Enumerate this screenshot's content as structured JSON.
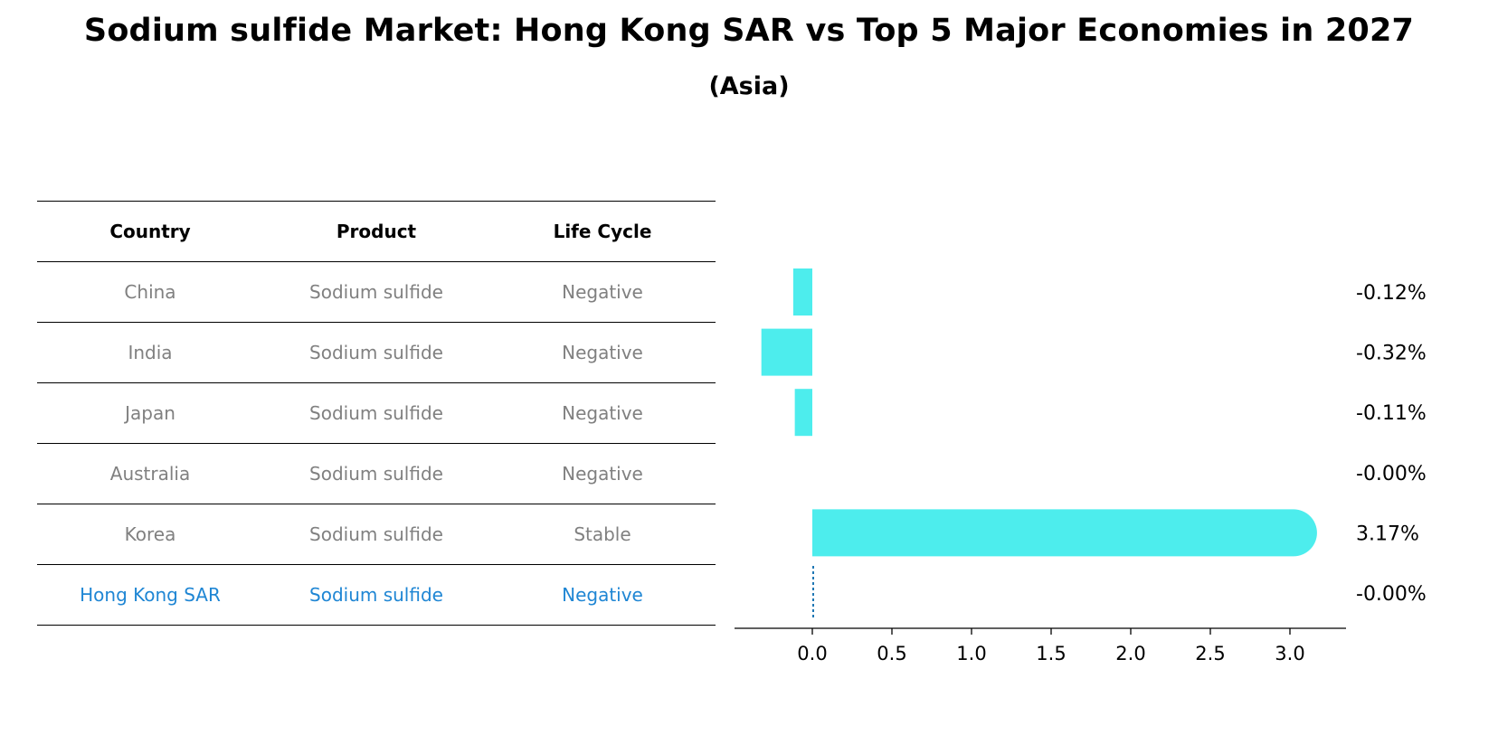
{
  "title": "Sodium sulfide Market: Hong Kong SAR vs Top 5 Major Economies in 2027",
  "subtitle": "(Asia)",
  "table": {
    "headers": [
      "Country",
      "Product",
      "Life Cycle"
    ],
    "rows": [
      {
        "country": "China",
        "product": "Sodium sulfide",
        "life_cycle": "Negative"
      },
      {
        "country": "India",
        "product": "Sodium sulfide",
        "life_cycle": "Negative"
      },
      {
        "country": "Japan",
        "product": "Sodium sulfide",
        "life_cycle": "Negative"
      },
      {
        "country": "Australia",
        "product": "Sodium sulfide",
        "life_cycle": "Negative"
      },
      {
        "country": "Korea",
        "product": "Sodium sulfide",
        "life_cycle": "Stable"
      },
      {
        "country": "Hong Kong SAR",
        "product": "Sodium sulfide",
        "life_cycle": "Negative"
      }
    ],
    "highlight_row_color": "#1f86d4",
    "text_color": "#808080"
  },
  "chart_data": {
    "type": "bar",
    "orientation": "horizontal",
    "categories": [
      "China",
      "India",
      "Japan",
      "Australia",
      "Korea",
      "Hong Kong SAR"
    ],
    "values": [
      -0.12,
      -0.32,
      -0.11,
      -0.0,
      3.17,
      -0.0
    ],
    "value_labels": [
      "-0.12%",
      "-0.32%",
      "-0.11%",
      "-0.00%",
      "3.17%",
      "-0.00%"
    ],
    "xticks": [
      "0.0",
      "0.5",
      "1.0",
      "1.5",
      "2.0",
      "2.5",
      "3.0"
    ],
    "xlim": [
      -0.48,
      3.35
    ],
    "bar_color": "#4deded",
    "highlight_marker_color": "#1f77b4",
    "xlabel": "",
    "ylabel": ""
  }
}
